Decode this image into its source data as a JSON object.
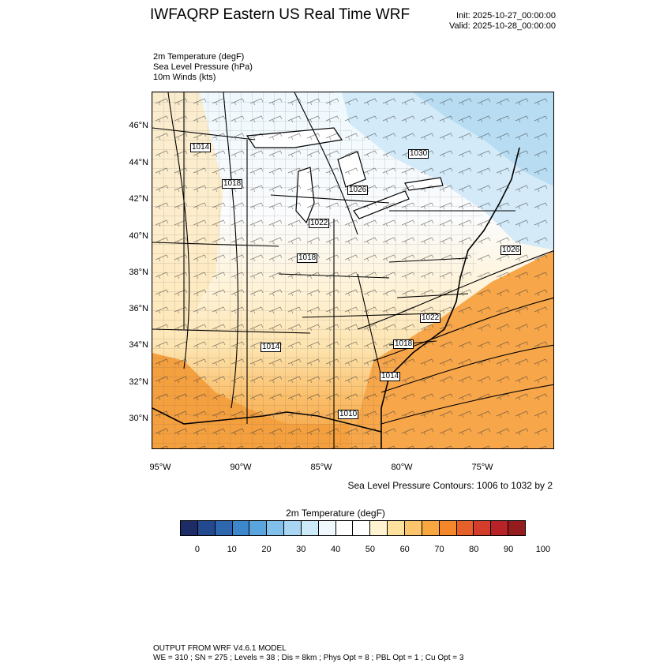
{
  "header": {
    "title": "IWFAQRP Eastern US Real Time WRF",
    "init": "Init: 2025-10-27_00:00:00",
    "valid": "Valid: 2025-10-28_00:00:00"
  },
  "fields": [
    "2m Temperature   (degF)",
    "Sea Level Pressure   (hPa)",
    "10m Winds   (kts)"
  ],
  "map": {
    "lat_labels": [
      "46°N",
      "44°N",
      "42°N",
      "40°N",
      "38°N",
      "36°N",
      "34°N",
      "32°N",
      "30°N"
    ],
    "lon_labels": [
      "95°W",
      "90°W",
      "85°W",
      "80°W",
      "75°W"
    ],
    "slp_labels": [
      "1014",
      "1018",
      "1026",
      "1030",
      "1022",
      "1018",
      "1026",
      "1022",
      "1014",
      "1018",
      "1014",
      "1010"
    ],
    "land_color": "#f6f1dc",
    "cold_color": "#bfe0f5",
    "warm_color": "#f5a040"
  },
  "contour_note": "Sea Level Pressure Contours: 1006 to 1032 by 2",
  "colorbar": {
    "title": "2m Temperature  (degF)",
    "colors": [
      "#1d2b66",
      "#234a8f",
      "#2c67b0",
      "#3d88cc",
      "#5aa5dd",
      "#80c0ea",
      "#a8d6f3",
      "#cdeaf8",
      "#eef8fd",
      "#ffffff",
      "#ffffff",
      "#fff3d0",
      "#ffe19e",
      "#fdc56b",
      "#f9a741",
      "#f3872a",
      "#e6602a",
      "#d43d2b",
      "#b82328",
      "#941c1f"
    ],
    "labels": [
      "0",
      "10",
      "20",
      "30",
      "40",
      "50",
      "60",
      "70",
      "80",
      "90",
      "100"
    ]
  },
  "footer": {
    "line1": "OUTPUT FROM WRF V4.6.1 MODEL",
    "line2": "WE = 310 ; SN = 275 ; Levels = 38 ; Dis = 8km ; Phys Opt = 8 ; PBL Opt = 1 ; Cu Opt = 3"
  }
}
